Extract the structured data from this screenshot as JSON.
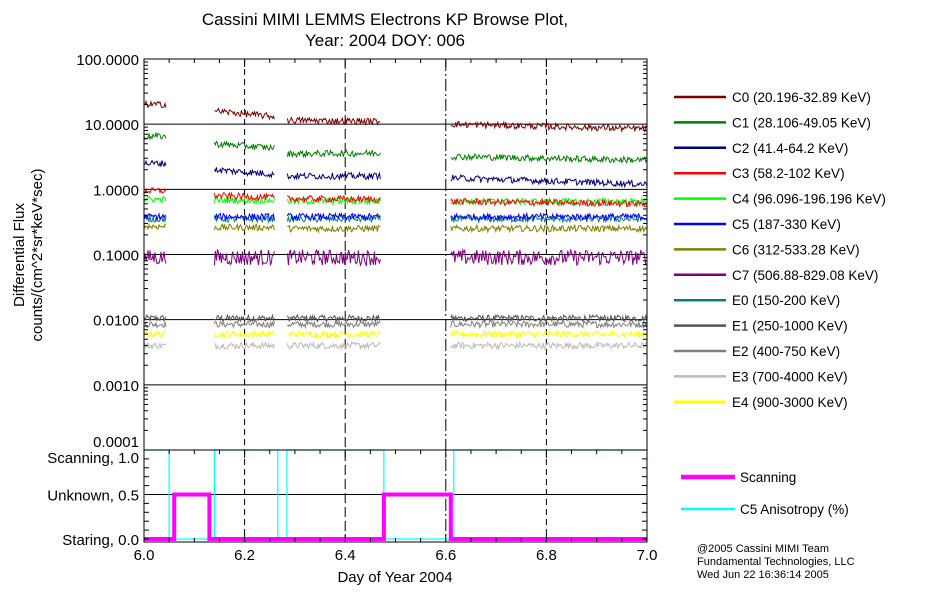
{
  "chart_data": {
    "type": "line",
    "title": [
      "Cassini MIMI LEMMS Electrons KP Browse Plot,",
      "Year: 2004 DOY: 006"
    ],
    "xlabel": "Day of Year 2004",
    "ylabel": [
      "Differential Flux",
      "counts/(cm^2*sr*keV*sec)"
    ],
    "xlim": [
      6.0,
      7.0
    ],
    "xticks": [
      "6.0",
      "6.2",
      "6.4",
      "6.6",
      "6.8",
      "7.0"
    ],
    "xtick_values": [
      6.0,
      6.2,
      6.4,
      6.6,
      6.8,
      7.0
    ],
    "top_panel": {
      "yscale": "log",
      "ylim": [
        0.0001,
        100
      ],
      "yticks": [
        "100.0000",
        "10.0000",
        "1.0000",
        "0.1000",
        "0.0100",
        "0.0010",
        "0.0001"
      ],
      "ytick_values": [
        100,
        10,
        1,
        0.1,
        0.01,
        0.001,
        0.0001
      ],
      "grid": true,
      "data_segments": [
        [
          6.0,
          6.045
        ],
        [
          6.14,
          6.26
        ],
        [
          6.285,
          6.47
        ],
        [
          6.61,
          7.0
        ]
      ],
      "series": [
        {
          "name": "C0 (20.196-32.89 KeV)",
          "color": "#800000",
          "levels": [
            [
              20,
              20
            ],
            [
              16,
              13
            ],
            [
              11.5,
              11
            ],
            [
              10,
              8.5
            ]
          ]
        },
        {
          "name": "C1 (28.106-49.05 KeV)",
          "color": "#008000",
          "levels": [
            [
              6.5,
              6.5
            ],
            [
              5,
              4.3
            ],
            [
              3.5,
              3.6
            ],
            [
              3.2,
              2.8
            ]
          ]
        },
        {
          "name": "C2 (41.4-64.2 KeV)",
          "color": "#000080",
          "levels": [
            [
              2.5,
              2.5
            ],
            [
              2.0,
              1.7
            ],
            [
              1.6,
              1.6
            ],
            [
              1.5,
              1.2
            ]
          ]
        },
        {
          "name": "C3 (58.2-102 KeV)",
          "color": "#ff0000",
          "levels": [
            [
              0.95,
              0.95
            ],
            [
              0.8,
              0.75
            ],
            [
              0.72,
              0.7
            ],
            [
              0.65,
              0.6
            ]
          ]
        },
        {
          "name": "C4 (96.096-196.196 KeV)",
          "color": "#00ff00",
          "levels": [
            [
              0.7,
              0.7
            ],
            [
              0.68,
              0.68
            ],
            [
              0.66,
              0.66
            ],
            [
              0.65,
              0.65
            ]
          ]
        },
        {
          "name": "C5 (187-330 KeV)",
          "color": "#0000ff",
          "levels": [
            [
              0.38,
              0.38
            ],
            [
              0.38,
              0.38
            ],
            [
              0.38,
              0.38
            ],
            [
              0.38,
              0.38
            ]
          ]
        },
        {
          "name": "C6 (312-533.28 KeV)",
          "color": "#808000",
          "levels": [
            [
              0.27,
              0.27
            ],
            [
              0.26,
              0.26
            ],
            [
              0.25,
              0.25
            ],
            [
              0.25,
              0.25
            ]
          ]
        },
        {
          "name": "C7 (506.88-829.08 KeV)",
          "color": "#800080",
          "levels": [
            [
              0.09,
              0.09
            ],
            [
              0.09,
              0.09
            ],
            [
              0.09,
              0.09
            ],
            [
              0.09,
              0.09
            ]
          ]
        },
        {
          "name": "E0 (150-200 KeV)",
          "color": "#008080",
          "levels": [
            [
              0.35,
              0.35
            ],
            [
              0.35,
              0.35
            ],
            [
              0.35,
              0.35
            ],
            [
              0.35,
              0.35
            ]
          ]
        },
        {
          "name": "E1 (250-1000 KeV)",
          "color": "#555555",
          "levels": [
            [
              0.0105,
              0.0105
            ],
            [
              0.0105,
              0.0105
            ],
            [
              0.0105,
              0.0105
            ],
            [
              0.0105,
              0.0105
            ]
          ]
        },
        {
          "name": "E2 (400-750 KeV)",
          "color": "#808080",
          "levels": [
            [
              0.0085,
              0.0085
            ],
            [
              0.0085,
              0.0085
            ],
            [
              0.0085,
              0.0085
            ],
            [
              0.0085,
              0.0085
            ]
          ]
        },
        {
          "name": "E3 (700-4000 KeV)",
          "color": "#bbbbbb",
          "levels": [
            [
              0.004,
              0.004
            ],
            [
              0.004,
              0.004
            ],
            [
              0.004,
              0.004
            ],
            [
              0.004,
              0.004
            ]
          ]
        },
        {
          "name": "E4 (900-3000 KeV)",
          "color": "#ffff00",
          "levels": [
            [
              0.006,
              0.006
            ],
            [
              0.006,
              0.006
            ],
            [
              0.006,
              0.006
            ],
            [
              0.006,
              0.006
            ]
          ]
        }
      ]
    },
    "bottom_panel": {
      "ylim": [
        0.0,
        1.0
      ],
      "yticks": [
        "Scanning, 1.0",
        "Unknown, 0.5",
        "Staring, 0.0"
      ],
      "ytick_values": [
        1.0,
        0.5,
        0.0
      ],
      "series": [
        {
          "name": "Scanning",
          "color": "#ff00ff",
          "x": [
            6.0,
            6.06,
            6.06,
            6.13,
            6.13,
            6.477,
            6.477,
            6.61,
            6.61,
            7.0
          ],
          "y": [
            0,
            0,
            0.5,
            0.5,
            0,
            0,
            0.5,
            0.5,
            0,
            0
          ]
        },
        {
          "name": "C5 Anisotropy (%)",
          "color": "#00ffff",
          "x": [
            6.0,
            6.05,
            6.05,
            6.14,
            6.14,
            6.266,
            6.266,
            6.284,
            6.284,
            6.477,
            6.477,
            6.616,
            6.616,
            7.0
          ],
          "y": [
            1,
            1,
            0,
            0,
            1,
            1,
            0,
            0,
            1,
            1,
            0,
            0,
            1,
            1
          ]
        }
      ]
    },
    "credits": [
      "@2005 Cassini MIMI Team",
      "Fundamental Technologies, LLC",
      "Wed Jun 22 16:36:14 2005"
    ]
  }
}
